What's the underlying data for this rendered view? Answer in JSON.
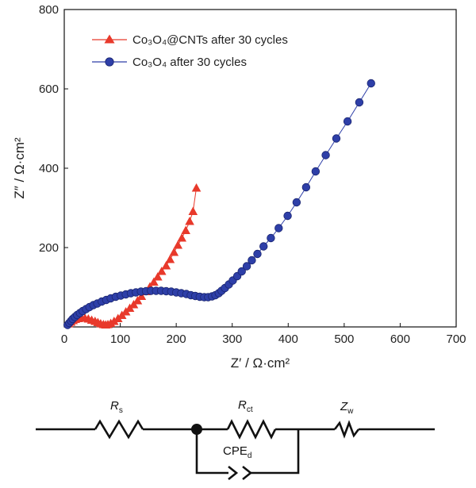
{
  "chart_data": {
    "type": "scatter",
    "xlabel": "Z′ / Ω·cm²",
    "ylabel": "Z″ / Ω·cm²",
    "xlim": [
      0,
      700
    ],
    "ylim": [
      0,
      800
    ],
    "xticks": [
      0,
      100,
      200,
      300,
      400,
      500,
      600,
      700
    ],
    "yticks": [
      200,
      400,
      600,
      800
    ],
    "legend_position": "top-left",
    "grid": false,
    "series": [
      {
        "name": "Co₃O₄@CNTs after 30 cycles",
        "color": "#e8392b",
        "marker": "triangle",
        "points": [
          [
            8,
            8
          ],
          [
            12,
            12
          ],
          [
            16,
            16
          ],
          [
            20,
            19
          ],
          [
            25,
            21
          ],
          [
            31,
            22
          ],
          [
            37,
            22
          ],
          [
            43,
            20
          ],
          [
            49,
            17
          ],
          [
            55,
            14
          ],
          [
            60,
            11
          ],
          [
            65,
            8
          ],
          [
            70,
            6
          ],
          [
            74,
            5
          ],
          [
            78,
            6
          ],
          [
            83,
            9
          ],
          [
            89,
            14
          ],
          [
            96,
            21
          ],
          [
            103,
            29
          ],
          [
            110,
            38
          ],
          [
            117,
            47
          ],
          [
            124,
            56
          ],
          [
            131,
            66
          ],
          [
            138,
            77
          ],
          [
            146,
            89
          ],
          [
            153,
            101
          ],
          [
            160,
            113
          ],
          [
            167,
            126
          ],
          [
            174,
            140
          ],
          [
            182,
            154
          ],
          [
            189,
            170
          ],
          [
            196,
            188
          ],
          [
            203,
            206
          ],
          [
            210,
            224
          ],
          [
            217,
            243
          ],
          [
            224,
            266
          ],
          [
            230,
            291
          ],
          [
            236,
            350
          ]
        ]
      },
      {
        "name": "Co₃O₄ after 30 cycles",
        "color": "#2e3fa8",
        "marker": "circle",
        "points": [
          [
            6,
            5
          ],
          [
            9,
            10
          ],
          [
            12,
            15
          ],
          [
            15,
            20
          ],
          [
            19,
            25
          ],
          [
            23,
            30
          ],
          [
            28,
            35
          ],
          [
            33,
            40
          ],
          [
            39,
            45
          ],
          [
            45,
            50
          ],
          [
            52,
            55
          ],
          [
            59,
            59
          ],
          [
            67,
            64
          ],
          [
            75,
            68
          ],
          [
            83,
            72
          ],
          [
            92,
            76
          ],
          [
            101,
            79
          ],
          [
            110,
            82
          ],
          [
            119,
            85
          ],
          [
            128,
            87
          ],
          [
            137,
            89
          ],
          [
            146,
            90
          ],
          [
            155,
            91
          ],
          [
            164,
            91
          ],
          [
            173,
            91
          ],
          [
            182,
            90
          ],
          [
            191,
            89
          ],
          [
            200,
            87
          ],
          [
            209,
            85
          ],
          [
            218,
            83
          ],
          [
            226,
            80
          ],
          [
            234,
            78
          ],
          [
            242,
            76
          ],
          [
            250,
            75
          ],
          [
            257,
            75
          ],
          [
            264,
            77
          ],
          [
            270,
            80
          ],
          [
            276,
            85
          ],
          [
            281,
            91
          ],
          [
            287,
            98
          ],
          [
            294,
            107
          ],
          [
            301,
            117
          ],
          [
            309,
            128
          ],
          [
            317,
            140
          ],
          [
            326,
            153
          ],
          [
            335,
            168
          ],
          [
            345,
            184
          ],
          [
            356,
            203
          ],
          [
            369,
            224
          ],
          [
            383,
            249
          ],
          [
            399,
            280
          ],
          [
            415,
            314
          ],
          [
            432,
            352
          ],
          [
            449,
            392
          ],
          [
            467,
            433
          ],
          [
            486,
            475
          ],
          [
            506,
            518
          ],
          [
            527,
            566
          ],
          [
            548,
            614
          ]
        ]
      }
    ]
  },
  "circuit": {
    "rs_label": "R",
    "rs_sub": "s",
    "rct_label": "R",
    "rct_sub": "ct",
    "zw_label": "Z",
    "zw_sub": "w",
    "cpe_label": "CPE",
    "cpe_sub": "d"
  }
}
